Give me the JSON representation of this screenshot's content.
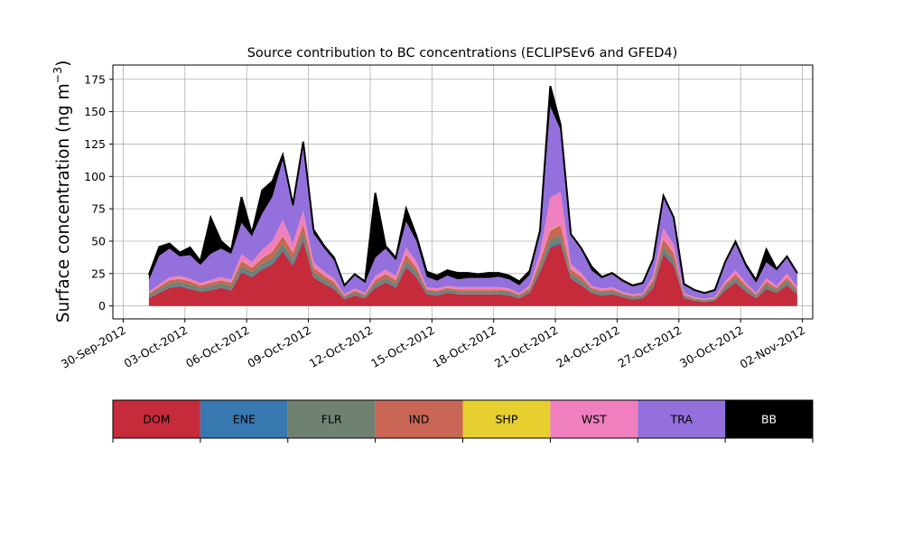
{
  "chart_data": {
    "type": "area",
    "stacked": true,
    "title": "Source contribution to BC concentrations (ECLIPSEv6 and GFED4)",
    "ylabel": "Surface concentration (ng m",
    "ylabel_unit_superscript": "−3",
    "ylabel_close": ")",
    "xlabel": "",
    "ylim": [
      -10,
      186
    ],
    "yticks": [
      0,
      25,
      50,
      75,
      100,
      125,
      150,
      175
    ],
    "xlim": [
      "2012-09-29T12:00",
      "2012-11-02T12:00"
    ],
    "xticks": [
      "30-Sep-2012",
      "03-Oct-2012",
      "06-Oct-2012",
      "09-Oct-2012",
      "12-Oct-2012",
      "15-Oct-2012",
      "18-Oct-2012",
      "21-Oct-2012",
      "24-Oct-2012",
      "27-Oct-2012",
      "30-Oct-2012",
      "02-Nov-2012"
    ],
    "grid": true,
    "legend_position": "bottom",
    "x": [
      "2012-10-01T06:00",
      "2012-10-01T18:00",
      "2012-10-02T06:00",
      "2012-10-02T18:00",
      "2012-10-03T06:00",
      "2012-10-03T18:00",
      "2012-10-04T06:00",
      "2012-10-04T18:00",
      "2012-10-05T06:00",
      "2012-10-05T18:00",
      "2012-10-06T06:00",
      "2012-10-06T18:00",
      "2012-10-07T06:00",
      "2012-10-07T18:00",
      "2012-10-08T06:00",
      "2012-10-08T18:00",
      "2012-10-09T06:00",
      "2012-10-09T18:00",
      "2012-10-10T06:00",
      "2012-10-10T18:00",
      "2012-10-11T06:00",
      "2012-10-11T18:00",
      "2012-10-12T06:00",
      "2012-10-12T18:00",
      "2012-10-13T06:00",
      "2012-10-13T18:00",
      "2012-10-14T06:00",
      "2012-10-14T18:00",
      "2012-10-15T06:00",
      "2012-10-15T18:00",
      "2012-10-16T06:00",
      "2012-10-16T18:00",
      "2012-10-17T06:00",
      "2012-10-17T18:00",
      "2012-10-18T06:00",
      "2012-10-18T18:00",
      "2012-10-19T06:00",
      "2012-10-19T18:00",
      "2012-10-20T06:00",
      "2012-10-20T18:00",
      "2012-10-21T06:00",
      "2012-10-21T18:00",
      "2012-10-22T06:00",
      "2012-10-22T18:00",
      "2012-10-23T06:00",
      "2012-10-23T18:00",
      "2012-10-24T06:00",
      "2012-10-24T18:00",
      "2012-10-25T06:00",
      "2012-10-25T18:00",
      "2012-10-26T06:00",
      "2012-10-26T18:00",
      "2012-10-27T06:00",
      "2012-10-27T18:00",
      "2012-10-28T06:00",
      "2012-10-28T18:00",
      "2012-10-29T06:00",
      "2012-10-29T18:00",
      "2012-10-30T06:00",
      "2012-10-30T18:00",
      "2012-10-31T06:00",
      "2012-10-31T18:00",
      "2012-11-01T06:00",
      "2012-11-01T18:00"
    ],
    "series": [
      {
        "name": "DOM",
        "color": "#c52b3a",
        "values": [
          6,
          10,
          14,
          15,
          13,
          11,
          12,
          14,
          12,
          26,
          22,
          28,
          32,
          42,
          31,
          50,
          22,
          17,
          13,
          5,
          8,
          6,
          14,
          18,
          14,
          30,
          22,
          9,
          8,
          10,
          9,
          9,
          9,
          9,
          9,
          8,
          6,
          10,
          26,
          45,
          48,
          21,
          16,
          10,
          8,
          9,
          7,
          5,
          6,
          14,
          40,
          31,
          6,
          4,
          3,
          4,
          12,
          18,
          11,
          6,
          13,
          10,
          16,
          9
        ]
      },
      {
        "name": "ENE",
        "color": "#3878b0",
        "values": [
          0.3,
          0.4,
          0.5,
          0.5,
          0.5,
          0.4,
          0.5,
          0.5,
          0.5,
          0.8,
          0.7,
          0.9,
          1,
          1.2,
          1,
          1.4,
          0.7,
          0.6,
          0.5,
          0.3,
          0.4,
          0.3,
          0.5,
          0.6,
          0.5,
          0.9,
          0.7,
          0.4,
          0.4,
          0.4,
          0.4,
          0.4,
          0.4,
          0.4,
          0.4,
          0.4,
          0.3,
          0.4,
          0.8,
          1.3,
          1.4,
          0.7,
          0.5,
          0.4,
          0.3,
          0.4,
          0.3,
          0.3,
          0.3,
          0.5,
          1.2,
          0.9,
          0.3,
          0.2,
          0.2,
          0.2,
          0.4,
          0.6,
          0.4,
          0.3,
          0.5,
          0.4,
          0.5,
          0.3
        ]
      },
      {
        "name": "FLR",
        "color": "#6f8272",
        "values": [
          2,
          2.5,
          3,
          3,
          3,
          2.5,
          3,
          3,
          3,
          4,
          3.5,
          4,
          4,
          5,
          4,
          5,
          3.5,
          3,
          2.5,
          1.5,
          2,
          1.5,
          3,
          3,
          3,
          4,
          3.5,
          2,
          2,
          2,
          2,
          2,
          2,
          2,
          2,
          2,
          1.5,
          2,
          4,
          5,
          5,
          3,
          3,
          2,
          2,
          2,
          1.5,
          1.5,
          1.5,
          3,
          4.5,
          4,
          1.5,
          1,
          1,
          1,
          2.5,
          3,
          2.5,
          1.5,
          3,
          2,
          3,
          2
        ]
      },
      {
        "name": "IND",
        "color": "#c96655",
        "values": [
          1.5,
          2,
          2.5,
          2.5,
          2.5,
          2,
          2.5,
          2.5,
          2.5,
          4,
          3.5,
          4,
          5,
          6,
          5,
          7,
          3.5,
          3,
          2.5,
          1,
          1.5,
          1,
          2.5,
          3,
          2.5,
          5,
          3.5,
          1.5,
          1.5,
          1.5,
          1.5,
          1.5,
          1.5,
          1.5,
          1.5,
          1.5,
          1,
          1.5,
          4,
          7,
          8,
          3.5,
          3,
          1.5,
          1.5,
          1.5,
          1,
          1,
          1,
          2.5,
          6,
          5,
          1,
          0.8,
          0.6,
          0.8,
          2,
          3,
          2,
          1,
          2.5,
          1.5,
          2.5,
          1.5
        ]
      },
      {
        "name": "SHP",
        "color": "#e6cf2e",
        "values": [
          0.2,
          0.2,
          0.2,
          0.2,
          0.2,
          0.2,
          0.2,
          0.2,
          0.2,
          0.3,
          0.3,
          0.3,
          0.3,
          0.4,
          0.3,
          0.4,
          0.2,
          0.2,
          0.2,
          0.1,
          0.1,
          0.1,
          0.2,
          0.2,
          0.2,
          0.3,
          0.3,
          0.1,
          0.1,
          0.1,
          0.1,
          0.1,
          0.1,
          0.1,
          0.1,
          0.1,
          0.1,
          0.2,
          0.3,
          0.5,
          0.5,
          0.2,
          0.2,
          0.1,
          0.1,
          0.1,
          0.1,
          0.1,
          0.1,
          0.2,
          0.4,
          0.4,
          0.1,
          0.1,
          0.1,
          0.1,
          0.2,
          0.2,
          0.2,
          0.1,
          0.2,
          0.1,
          0.2,
          0.1
        ]
      },
      {
        "name": "WST",
        "color": "#f07fbf",
        "values": [
          1,
          1.5,
          2,
          2,
          2,
          1.5,
          2,
          2,
          2,
          5,
          4,
          6,
          8,
          12,
          7,
          10,
          4,
          3,
          2.5,
          1,
          1.5,
          1,
          3,
          3.5,
          3,
          5,
          4,
          1.5,
          1.5,
          1.5,
          1.5,
          1.5,
          1.5,
          1.5,
          1.5,
          1.5,
          1,
          2,
          6,
          25,
          25,
          4,
          3,
          1.5,
          1.5,
          1.5,
          1,
          1,
          1,
          3,
          8,
          6,
          1,
          0.8,
          0.6,
          0.8,
          2,
          3,
          2,
          1,
          2.5,
          1.5,
          3,
          1.5
        ]
      },
      {
        "name": "TRA",
        "color": "#9370db",
        "values": [
          9,
          22,
          22,
          15,
          18,
          14,
          20,
          22,
          20,
          24,
          20,
          28,
          34,
          46,
          28,
          50,
          22,
          18,
          14,
          6,
          10,
          8,
          14,
          16,
          12,
          20,
          16,
          8,
          6,
          8,
          6,
          7,
          7,
          7,
          8,
          7,
          6,
          8,
          14,
          70,
          48,
          22,
          18,
          12,
          8,
          10,
          8,
          6,
          7,
          12,
          24,
          20,
          6,
          5,
          4,
          5,
          14,
          20,
          12,
          8,
          12,
          12,
          12,
          10
        ]
      },
      {
        "name": "BB",
        "color": "#000000",
        "values": [
          4,
          7,
          4,
          3,
          6,
          3,
          28,
          6,
          3,
          20,
          2,
          18,
          12,
          4,
          2,
          3,
          3,
          2,
          2,
          1,
          1,
          1,
          50,
          2,
          2,
          10,
          4,
          4,
          4,
          4,
          5,
          4,
          3,
          4,
          3,
          3,
          3,
          3,
          3,
          16,
          4,
          1,
          1,
          3,
          1,
          1,
          1,
          1,
          1,
          1,
          1,
          1,
          1,
          0.5,
          0.5,
          0.5,
          1,
          2,
          2,
          2,
          10,
          1,
          1,
          1
        ]
      }
    ]
  }
}
